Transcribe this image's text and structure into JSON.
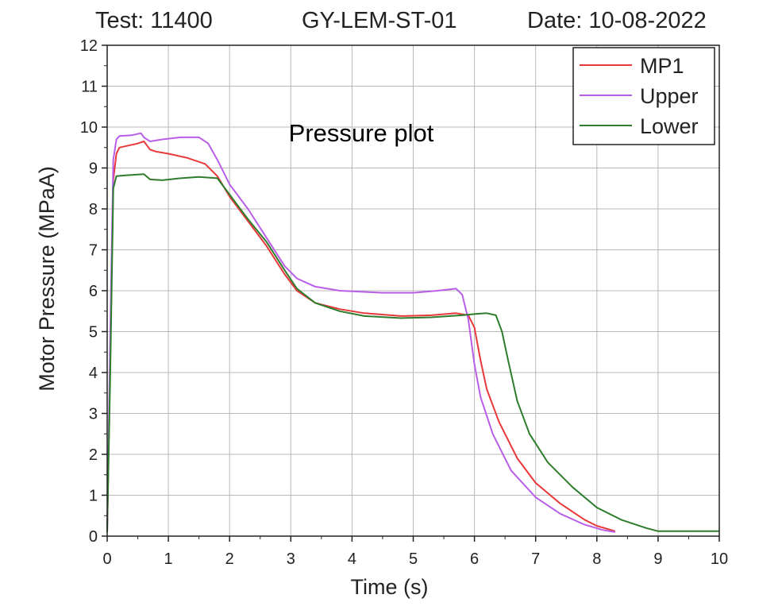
{
  "header": {
    "test": "Test: 11400",
    "id": "GY-LEM-ST-01",
    "date": "Date: 10-08-2022"
  },
  "chart_data": {
    "type": "line",
    "title": "Pressure plot",
    "xlabel": "Time (s)",
    "ylabel": "Motor Pressure (MPaA)",
    "xlim": [
      0,
      10
    ],
    "ylim": [
      0,
      12
    ],
    "xticks": [
      "0",
      "1",
      "2",
      "3",
      "4",
      "5",
      "6",
      "7",
      "8",
      "9",
      "10"
    ],
    "yticks": [
      "0",
      "1",
      "2",
      "3",
      "4",
      "5",
      "6",
      "7",
      "8",
      "9",
      "10",
      "11",
      "12"
    ],
    "grid": true,
    "legend_position": "top-right",
    "series": [
      {
        "name": "MP1",
        "color": "#e8393a",
        "points": [
          [
            0,
            0.1
          ],
          [
            0.05,
            4.5
          ],
          [
            0.1,
            8.7
          ],
          [
            0.15,
            9.35
          ],
          [
            0.2,
            9.5
          ],
          [
            0.35,
            9.55
          ],
          [
            0.5,
            9.6
          ],
          [
            0.6,
            9.65
          ],
          [
            0.7,
            9.45
          ],
          [
            0.8,
            9.4
          ],
          [
            1.0,
            9.35
          ],
          [
            1.3,
            9.25
          ],
          [
            1.6,
            9.1
          ],
          [
            1.8,
            8.8
          ],
          [
            2.0,
            8.3
          ],
          [
            2.3,
            7.7
          ],
          [
            2.6,
            7.1
          ],
          [
            2.9,
            6.4
          ],
          [
            3.1,
            6.0
          ],
          [
            3.4,
            5.7
          ],
          [
            3.8,
            5.55
          ],
          [
            4.2,
            5.45
          ],
          [
            4.8,
            5.38
          ],
          [
            5.3,
            5.4
          ],
          [
            5.7,
            5.45
          ],
          [
            5.9,
            5.4
          ],
          [
            6.0,
            5.1
          ],
          [
            6.1,
            4.3
          ],
          [
            6.2,
            3.6
          ],
          [
            6.4,
            2.8
          ],
          [
            6.7,
            1.9
          ],
          [
            7.0,
            1.3
          ],
          [
            7.4,
            0.8
          ],
          [
            7.8,
            0.4
          ],
          [
            8.0,
            0.25
          ],
          [
            8.3,
            0.12
          ]
        ]
      },
      {
        "name": "Upper",
        "color": "#b85ee8",
        "points": [
          [
            0,
            0.1
          ],
          [
            0.05,
            5.0
          ],
          [
            0.1,
            9.2
          ],
          [
            0.15,
            9.7
          ],
          [
            0.2,
            9.78
          ],
          [
            0.4,
            9.8
          ],
          [
            0.55,
            9.85
          ],
          [
            0.6,
            9.75
          ],
          [
            0.7,
            9.65
          ],
          [
            0.9,
            9.7
          ],
          [
            1.2,
            9.75
          ],
          [
            1.5,
            9.75
          ],
          [
            1.65,
            9.6
          ],
          [
            1.8,
            9.2
          ],
          [
            2.0,
            8.6
          ],
          [
            2.3,
            8.0
          ],
          [
            2.6,
            7.3
          ],
          [
            2.9,
            6.6
          ],
          [
            3.1,
            6.3
          ],
          [
            3.4,
            6.1
          ],
          [
            3.8,
            6.0
          ],
          [
            4.5,
            5.95
          ],
          [
            5.0,
            5.95
          ],
          [
            5.4,
            6.0
          ],
          [
            5.7,
            6.05
          ],
          [
            5.8,
            5.9
          ],
          [
            5.9,
            5.3
          ],
          [
            6.0,
            4.2
          ],
          [
            6.1,
            3.4
          ],
          [
            6.3,
            2.5
          ],
          [
            6.6,
            1.6
          ],
          [
            7.0,
            0.95
          ],
          [
            7.4,
            0.55
          ],
          [
            7.8,
            0.28
          ],
          [
            8.1,
            0.15
          ],
          [
            8.3,
            0.1
          ]
        ]
      },
      {
        "name": "Lower",
        "color": "#2e7d2e",
        "points": [
          [
            0,
            0.1
          ],
          [
            0.05,
            4.0
          ],
          [
            0.1,
            8.5
          ],
          [
            0.15,
            8.8
          ],
          [
            0.3,
            8.82
          ],
          [
            0.6,
            8.85
          ],
          [
            0.7,
            8.72
          ],
          [
            0.9,
            8.7
          ],
          [
            1.2,
            8.75
          ],
          [
            1.5,
            8.78
          ],
          [
            1.8,
            8.75
          ],
          [
            2.0,
            8.35
          ],
          [
            2.3,
            7.75
          ],
          [
            2.6,
            7.2
          ],
          [
            2.9,
            6.5
          ],
          [
            3.1,
            6.05
          ],
          [
            3.4,
            5.7
          ],
          [
            3.8,
            5.5
          ],
          [
            4.2,
            5.38
          ],
          [
            4.8,
            5.33
          ],
          [
            5.3,
            5.35
          ],
          [
            5.8,
            5.4
          ],
          [
            6.0,
            5.43
          ],
          [
            6.2,
            5.45
          ],
          [
            6.35,
            5.4
          ],
          [
            6.45,
            5.0
          ],
          [
            6.55,
            4.3
          ],
          [
            6.7,
            3.3
          ],
          [
            6.9,
            2.5
          ],
          [
            7.2,
            1.8
          ],
          [
            7.6,
            1.2
          ],
          [
            8.0,
            0.7
          ],
          [
            8.4,
            0.4
          ],
          [
            8.8,
            0.2
          ],
          [
            9.0,
            0.12
          ],
          [
            10.0,
            0.12
          ]
        ]
      }
    ]
  }
}
